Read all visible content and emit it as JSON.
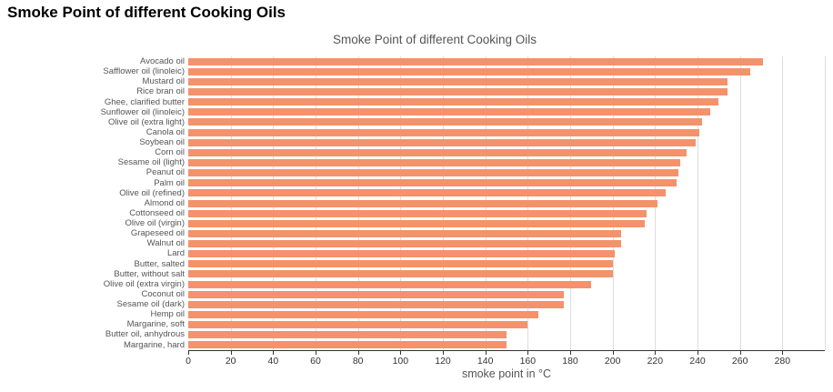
{
  "page": {
    "heading": "Smoke Point of different Cooking Oils"
  },
  "colors": {
    "bar": "#f4926c",
    "gridline": "#dddddd",
    "axis_line": "#333333",
    "tick_label": "#333333",
    "category_label": "#555555",
    "title": "#555555",
    "background": "#ffffff"
  },
  "chart_data": {
    "type": "bar",
    "orientation": "horizontal",
    "title": "Smoke Point of different Cooking Oils",
    "xlabel": "smoke point in °C",
    "ylabel": "",
    "xlim": [
      0,
      300
    ],
    "x_ticks": [
      0,
      20,
      40,
      60,
      80,
      100,
      120,
      140,
      160,
      180,
      200,
      220,
      240,
      260,
      280
    ],
    "grid": "vertical gridlines every 20, light gray",
    "legend": "none",
    "bar_color": "#f4926c",
    "categories": [
      "Avocado oil",
      "Safflower oil (linoleic)",
      "Mustard oil",
      "Rice bran oil",
      "Ghee, clarified butter",
      "Sunflower oil (linoleic)",
      "Olive oil (extra light)",
      "Canola oil",
      "Soybean oil",
      "Corn oil",
      "Sesame oil (light)",
      "Peanut oil",
      "Palm oil",
      "Olive oil (refined)",
      "Almond oil",
      "Cottonseed oil",
      "Olive oil (virgin)",
      "Grapeseed oil",
      "Walnut oil",
      "Lard",
      "Butter, salted",
      "Butter, without salt",
      "Olive oil (extra virgin)",
      "Coconut oil",
      "Sesame oil (dark)",
      "Hemp oil",
      "Margarine, soft",
      "Butter oil, anhydrous",
      "Margarine, hard"
    ],
    "values": [
      271,
      265,
      254,
      254,
      250,
      246,
      242,
      241,
      239,
      235,
      232,
      231,
      230,
      225,
      221,
      216,
      215,
      204,
      204,
      201,
      200,
      200,
      190,
      177,
      177,
      165,
      160,
      150,
      150
    ]
  }
}
